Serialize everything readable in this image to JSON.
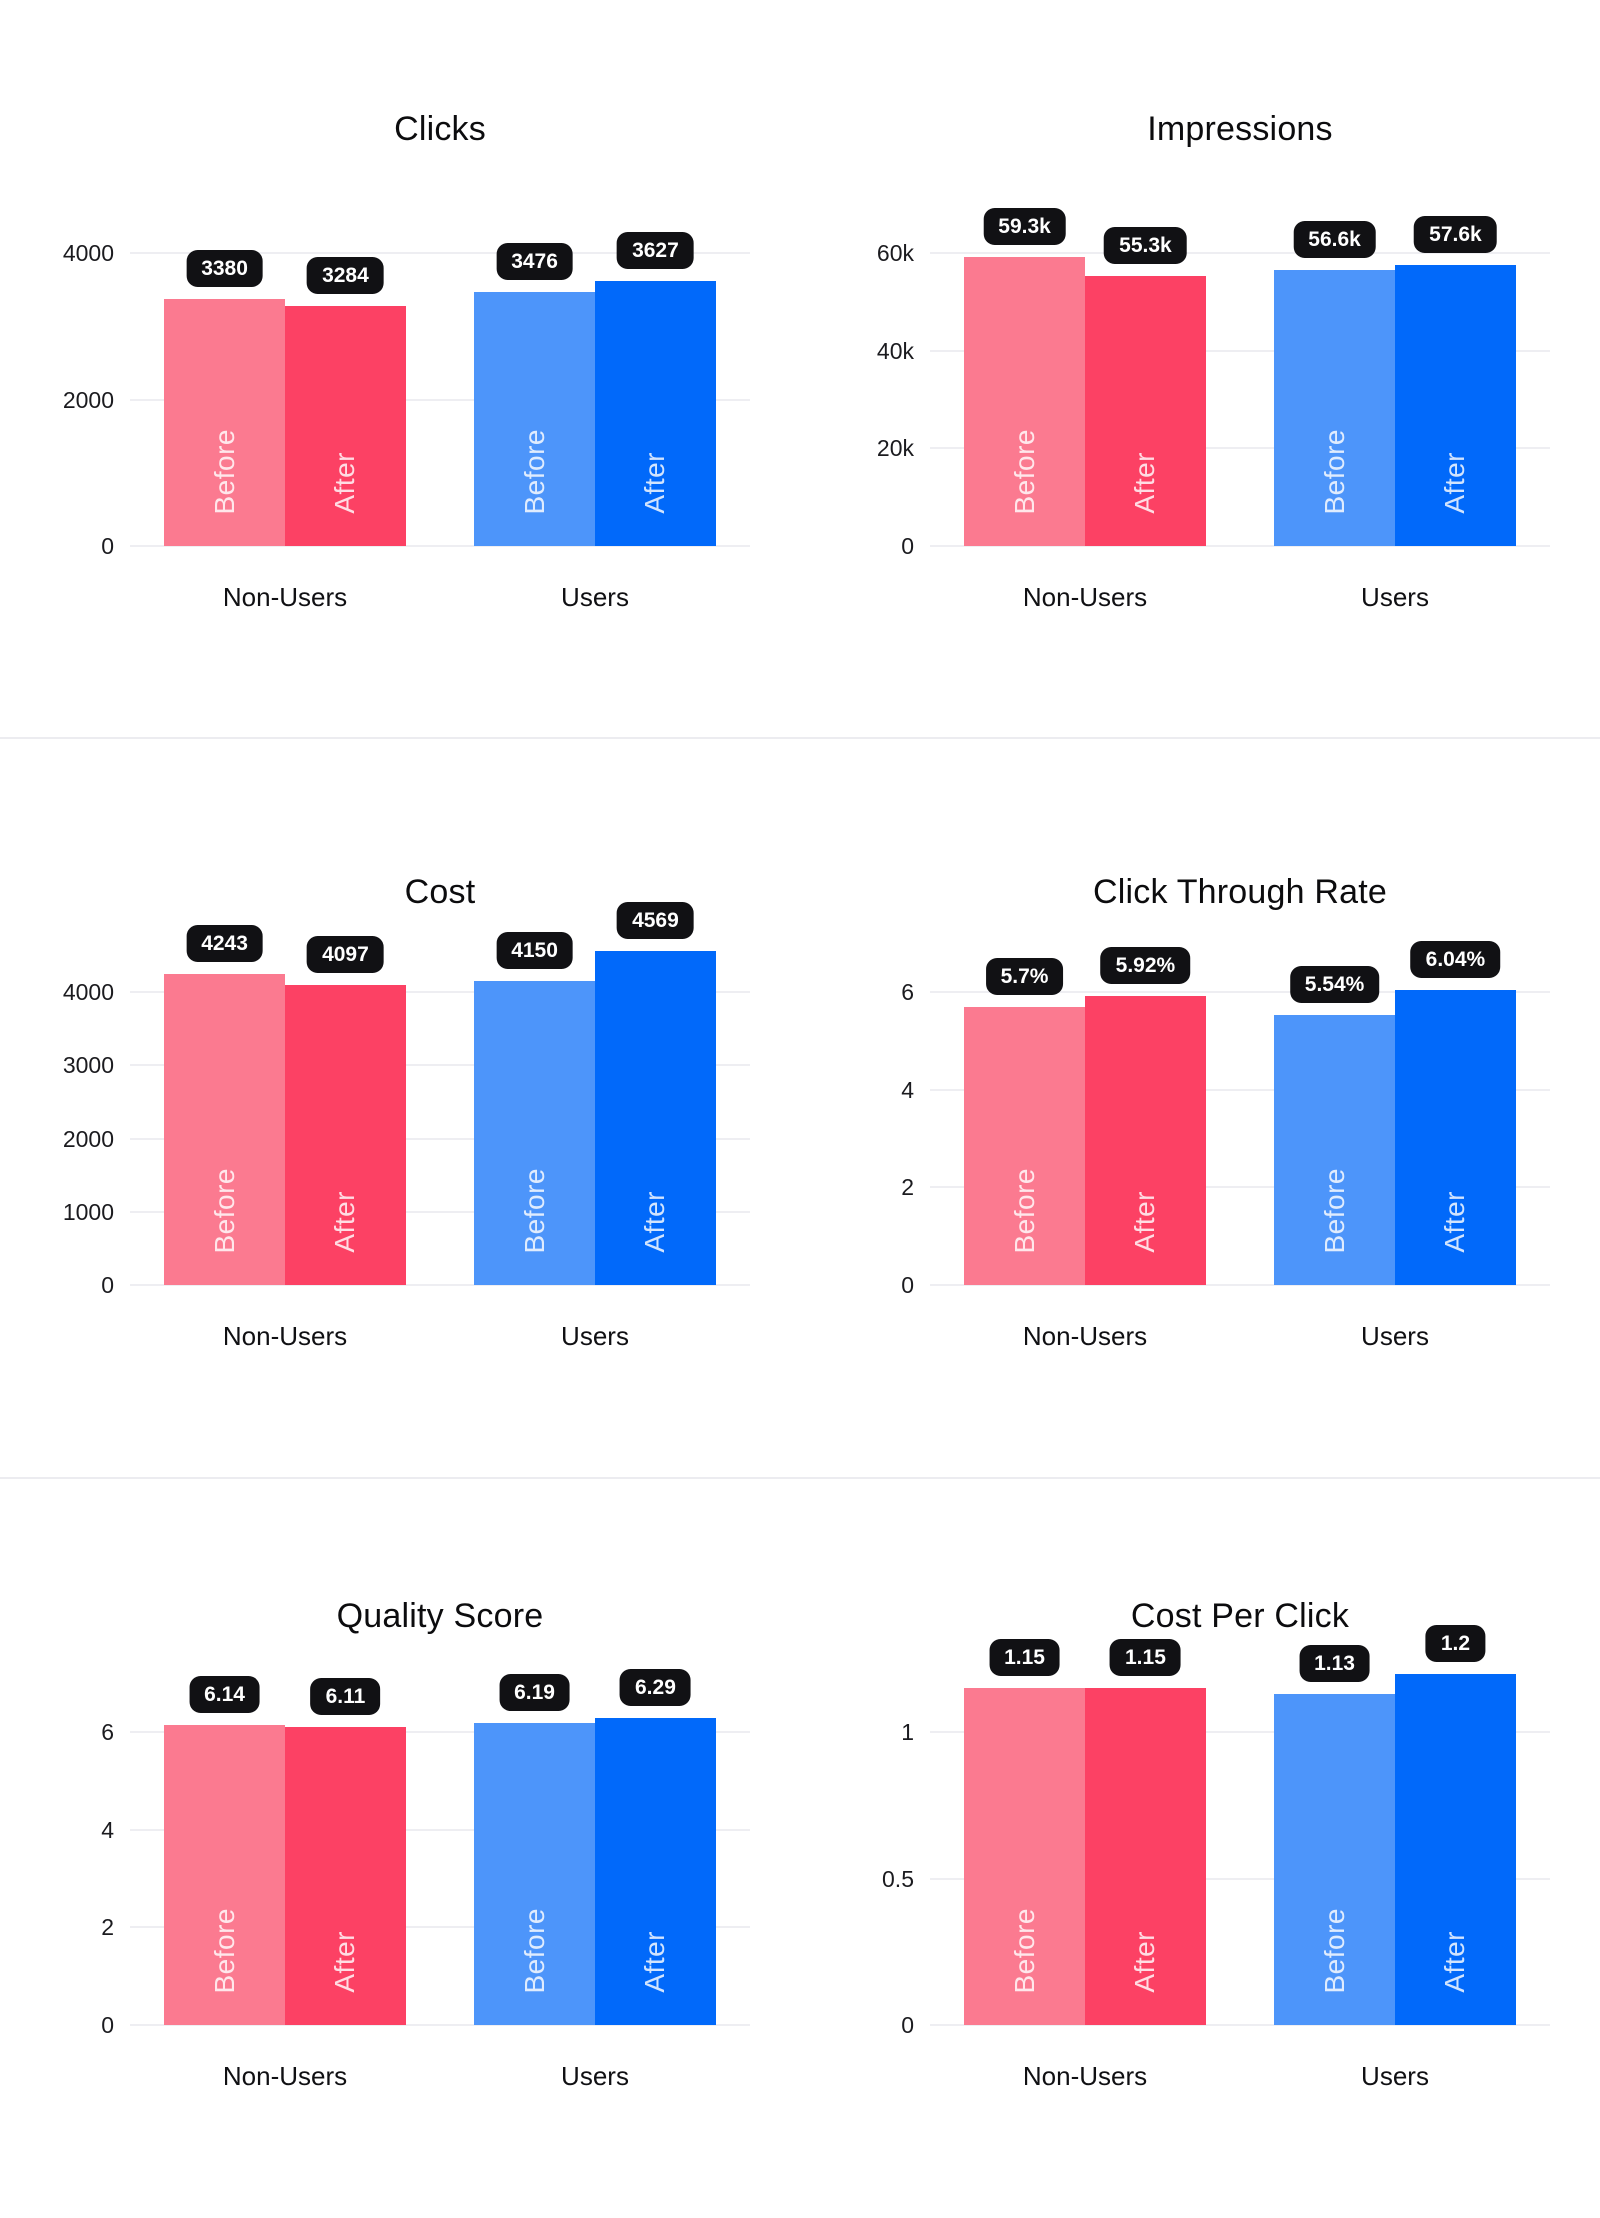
{
  "page": {
    "background": "#FFFFFF",
    "row_divider_color": "#ECECF0",
    "grid_color": "#EEEEF2",
    "pill_bg": "#111114",
    "pill_text_color": "#FFFFFF",
    "title_color": "#0C0C0E",
    "tick_color": "#1B1B1F",
    "category_color": "#101013",
    "bar_inner_label_color": "rgba(255,255,255,0.82)"
  },
  "series_colors": {
    "before_non_users": "#FB7A90",
    "after_non_users": "#FC4164",
    "before_users": "#4D95FA",
    "after_users": "#0169FA"
  },
  "chart_data": [
    {
      "type": "bar",
      "title": "Clicks",
      "categories": [
        "Non-Users",
        "Users"
      ],
      "series": [
        {
          "name": "Before",
          "values": [
            3380,
            3476
          ]
        },
        {
          "name": "After",
          "values": [
            3284,
            3627
          ]
        }
      ],
      "value_labels": [
        [
          "3380",
          "3476"
        ],
        [
          "3284",
          "3627"
        ]
      ],
      "yticks": [
        {
          "v": 0,
          "label": "0"
        },
        {
          "v": 2000,
          "label": "2000"
        },
        {
          "v": 4000,
          "label": "4000"
        }
      ],
      "ylim": [
        0,
        5000
      ],
      "grid": true,
      "legend": "inside-bars"
    },
    {
      "type": "bar",
      "title": "Impressions",
      "categories": [
        "Non-Users",
        "Users"
      ],
      "series": [
        {
          "name": "Before",
          "values": [
            59300,
            56600
          ]
        },
        {
          "name": "After",
          "values": [
            55300,
            57600
          ]
        }
      ],
      "value_labels": [
        [
          "59.3k",
          "56.6k"
        ],
        [
          "55.3k",
          "57.6k"
        ]
      ],
      "yticks": [
        {
          "v": 0,
          "label": "0"
        },
        {
          "v": 20000,
          "label": "20k"
        },
        {
          "v": 40000,
          "label": "40k"
        },
        {
          "v": 60000,
          "label": "60k"
        }
      ],
      "ylim": [
        0,
        75000
      ],
      "grid": true,
      "legend": "inside-bars"
    },
    {
      "type": "bar",
      "title": "Cost",
      "categories": [
        "Non-Users",
        "Users"
      ],
      "series": [
        {
          "name": "Before",
          "values": [
            4243,
            4150
          ]
        },
        {
          "name": "After",
          "values": [
            4097,
            4569
          ]
        }
      ],
      "value_labels": [
        [
          "4243",
          "4150"
        ],
        [
          "4097",
          "4569"
        ]
      ],
      "yticks": [
        {
          "v": 0,
          "label": "0"
        },
        {
          "v": 1000,
          "label": "1000"
        },
        {
          "v": 2000,
          "label": "2000"
        },
        {
          "v": 3000,
          "label": "3000"
        },
        {
          "v": 4000,
          "label": "4000"
        }
      ],
      "ylim": [
        0,
        5000
      ],
      "grid": true,
      "legend": "inside-bars"
    },
    {
      "type": "bar",
      "title": "Click Through Rate",
      "categories": [
        "Non-Users",
        "Users"
      ],
      "series": [
        {
          "name": "Before",
          "values": [
            5.7,
            5.54
          ]
        },
        {
          "name": "After",
          "values": [
            5.92,
            6.04
          ]
        }
      ],
      "value_labels": [
        [
          "5.7%",
          "5.54%"
        ],
        [
          "5.92%",
          "6.04%"
        ]
      ],
      "yticks": [
        {
          "v": 0,
          "label": "0"
        },
        {
          "v": 2,
          "label": "2"
        },
        {
          "v": 4,
          "label": "4"
        },
        {
          "v": 6,
          "label": "6"
        }
      ],
      "ylim": [
        0,
        7.5
      ],
      "grid": true,
      "legend": "inside-bars"
    },
    {
      "type": "bar",
      "title": "Quality Score",
      "categories": [
        "Non-Users",
        "Users"
      ],
      "series": [
        {
          "name": "Before",
          "values": [
            6.14,
            6.19
          ]
        },
        {
          "name": "After",
          "values": [
            6.11,
            6.29
          ]
        }
      ],
      "value_labels": [
        [
          "6.14",
          "6.19"
        ],
        [
          "6.11",
          "6.29"
        ]
      ],
      "yticks": [
        {
          "v": 0,
          "label": "0"
        },
        {
          "v": 2,
          "label": "2"
        },
        {
          "v": 4,
          "label": "4"
        },
        {
          "v": 6,
          "label": "6"
        }
      ],
      "ylim": [
        0,
        7.5
      ],
      "grid": true,
      "legend": "inside-bars"
    },
    {
      "type": "bar",
      "title": "Cost Per Click",
      "categories": [
        "Non-Users",
        "Users"
      ],
      "series": [
        {
          "name": "Before",
          "values": [
            1.15,
            1.13
          ]
        },
        {
          "name": "After",
          "values": [
            1.15,
            1.2
          ]
        }
      ],
      "value_labels": [
        [
          "1.15",
          "1.13"
        ],
        [
          "1.15",
          "1.2"
        ]
      ],
      "yticks": [
        {
          "v": 0,
          "label": "0"
        },
        {
          "v": 0.5,
          "label": "0.5"
        },
        {
          "v": 1,
          "label": "1"
        }
      ],
      "ylim": [
        0,
        1.25
      ],
      "grid": true,
      "legend": "inside-bars"
    }
  ]
}
